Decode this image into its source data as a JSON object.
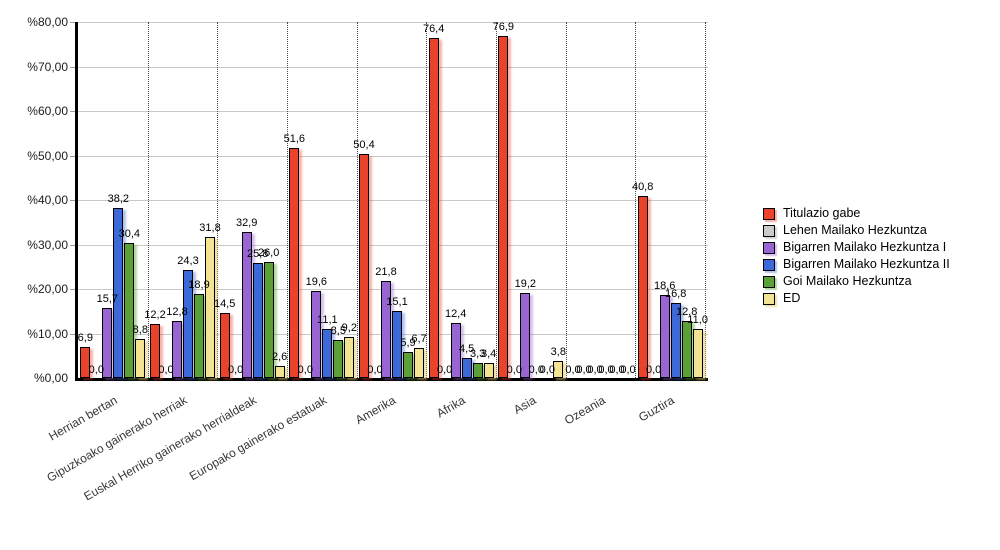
{
  "chart_data": {
    "type": "bar",
    "title": "",
    "categories": [
      "Herrian bertan",
      "Gipuzkoako gainerako herriak",
      "Euskal Herriko gainerako herrialdeak",
      "Europako gainerako estatuak",
      "Amerika",
      "Afrika",
      "Asia",
      "Ozeania",
      "Guztira"
    ],
    "series": [
      {
        "name": "Titulazio gabe",
        "color": "#e9432c",
        "shadow": "rgba(233,67,44,0.40)",
        "values": [
          6.9,
          12.2,
          14.5,
          51.6,
          50.4,
          76.4,
          76.9,
          0.0,
          40.8
        ]
      },
      {
        "name": "Lehen Mailako Hezkuntza",
        "color": "#cbcbcb",
        "shadow": "rgba(150,150,150,0.40)",
        "values": [
          0.0,
          0.0,
          0.0,
          0.0,
          0.0,
          0.0,
          0.0,
          0.0,
          0.0
        ]
      },
      {
        "name": "Bigarren Mailako Hezkuntza I",
        "color": "#9865d2",
        "shadow": "rgba(152,101,210,0.40)",
        "values": [
          15.7,
          12.8,
          32.9,
          19.6,
          21.8,
          12.4,
          19.2,
          0.0,
          18.6
        ]
      },
      {
        "name": "Bigarren Mailako Hezkuntza II",
        "color": "#3c69d8",
        "shadow": "rgba(60,105,216,0.40)",
        "values": [
          38.2,
          24.3,
          25.8,
          11.1,
          15.1,
          4.5,
          0.0,
          0.0,
          16.8
        ]
      },
      {
        "name": "Goi Mailako Hezkuntza",
        "color": "#5ba138",
        "shadow": "rgba(91,161,56,0.45)",
        "values": [
          30.4,
          18.9,
          26.0,
          8.5,
          5.9,
          3.3,
          0.0,
          0.0,
          12.8
        ]
      },
      {
        "name": "ED",
        "color": "#f3e494",
        "shadow": "rgba(222,200,110,0.55)",
        "values": [
          8.8,
          31.8,
          2.6,
          9.2,
          6.7,
          3.4,
          3.8,
          0.0,
          11.0
        ]
      }
    ],
    "y_axis_tick_labels": [
      "%80,00",
      "%70,00",
      "%60,00",
      "%50,00",
      "%40,00",
      "%30,00",
      "%20,00",
      "%10,00",
      "%0,00"
    ],
    "ylim": [
      0,
      80
    ],
    "y_step": 10,
    "decimal_separator": ",",
    "bar_value_labels": true,
    "legend_position": "right",
    "grid": {
      "horizontal": true,
      "vertical": "dotted"
    }
  }
}
